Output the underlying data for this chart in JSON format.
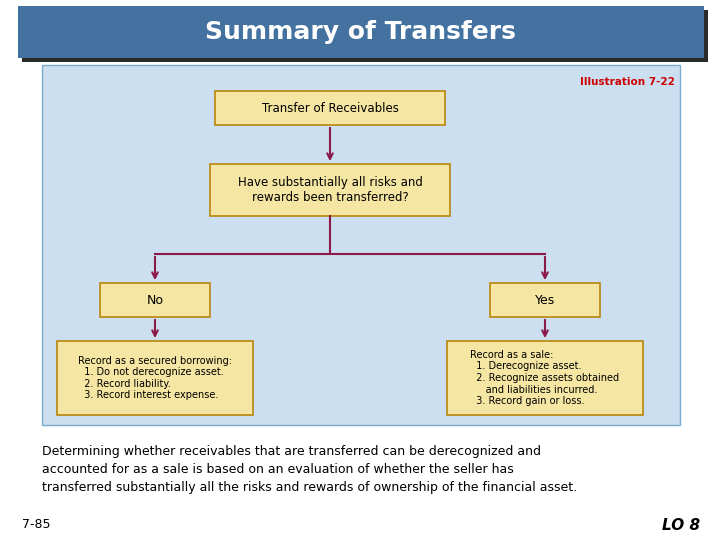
{
  "title": "Summary of Transfers",
  "title_bg_color": "#4472A0",
  "title_shadow_color": "#2A2A2A",
  "title_text_color": "#FFFFFF",
  "illustration_label": "Illustration 7-22",
  "illustration_color": "#CC0000",
  "diagram_bg_color": "#CCDFF0",
  "diagram_border_color": "#7AABCF",
  "box_fill_color": "#F5E6A3",
  "box_edge_color": "#B8860B",
  "arrow_color": "#8B1A4A",
  "footer_text_line1": "Determining whether receivables that are transferred can be derecognized and",
  "footer_text_line2": "accounted for as a sale is based on an evaluation of whether the seller has",
  "footer_text_line3": "transferred substantially all the risks and rewards of ownership of the financial asset.",
  "page_label": "7-85",
  "lo_label": "LO 8",
  "bg_color": "#FFFFFF",
  "title_fontsize": 18,
  "body_fontsize": 7.5,
  "footer_fontsize": 9
}
